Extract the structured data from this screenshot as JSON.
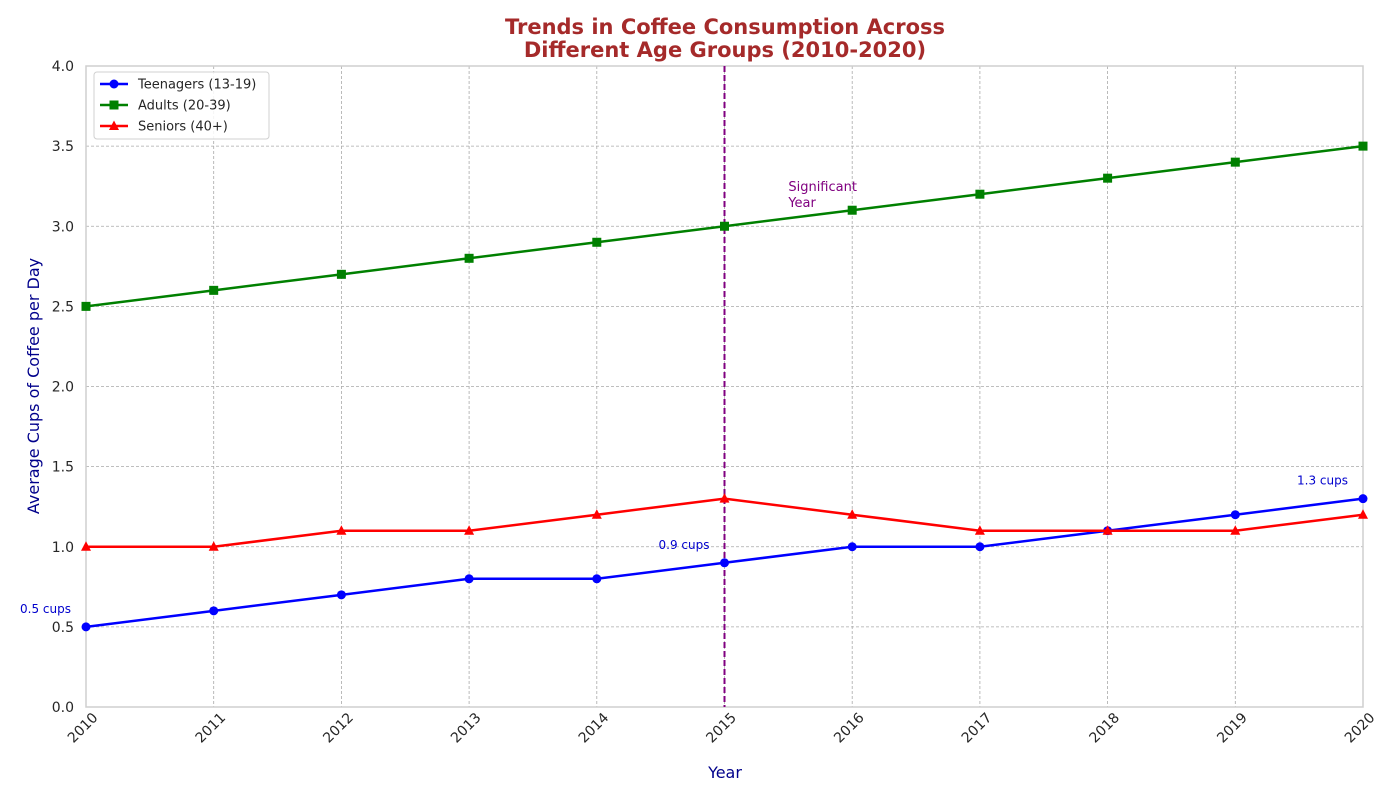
{
  "chart_data": {
    "type": "line",
    "title_lines": [
      "Trends in Coffee Consumption Across",
      "Different Age Groups (2010-2020)"
    ],
    "xlabel": "Year",
    "ylabel": "Average Cups of Coffee per Day",
    "x": [
      2010,
      2011,
      2012,
      2013,
      2014,
      2015,
      2016,
      2017,
      2018,
      2019,
      2020
    ],
    "xlim": [
      2010,
      2020
    ],
    "ylim": [
      0,
      4
    ],
    "yticks": [
      "0.0",
      "0.5",
      "1.0",
      "1.5",
      "2.0",
      "2.5",
      "3.0",
      "3.5",
      "4.0"
    ],
    "ytick_values": [
      0,
      0.5,
      1,
      1.5,
      2,
      2.5,
      3,
      3.5,
      4
    ],
    "grid": true,
    "legend_position": "top-left",
    "series": [
      {
        "name": "Teenagers (13-19)",
        "color": "#0000ff",
        "marker": "circle",
        "values": [
          0.5,
          0.6,
          0.7,
          0.8,
          0.8,
          0.9,
          1.0,
          1.0,
          1.1,
          1.2,
          1.3
        ]
      },
      {
        "name": "Adults (20-39)",
        "color": "#008000",
        "marker": "square",
        "values": [
          2.5,
          2.6,
          2.7,
          2.8,
          2.9,
          3.0,
          3.1,
          3.2,
          3.3,
          3.4,
          3.5
        ]
      },
      {
        "name": "Seniors (40+)",
        "color": "#ff0000",
        "marker": "triangle",
        "values": [
          1.0,
          1.0,
          1.1,
          1.1,
          1.2,
          1.3,
          1.2,
          1.1,
          1.1,
          1.1,
          1.2
        ]
      }
    ],
    "vertical_line": {
      "x": 2015,
      "color": "#800080",
      "label_lines": [
        "Significant",
        "Year"
      ]
    },
    "annotations": [
      {
        "text": "0.5 cups",
        "x": 2010,
        "y": 0.5,
        "color": "#0000cd"
      },
      {
        "text": "0.9 cups",
        "x": 2015,
        "y": 0.9,
        "color": "#0000cd"
      },
      {
        "text": "1.3 cups",
        "x": 2020,
        "y": 1.3,
        "color": "#0000cd"
      }
    ]
  }
}
